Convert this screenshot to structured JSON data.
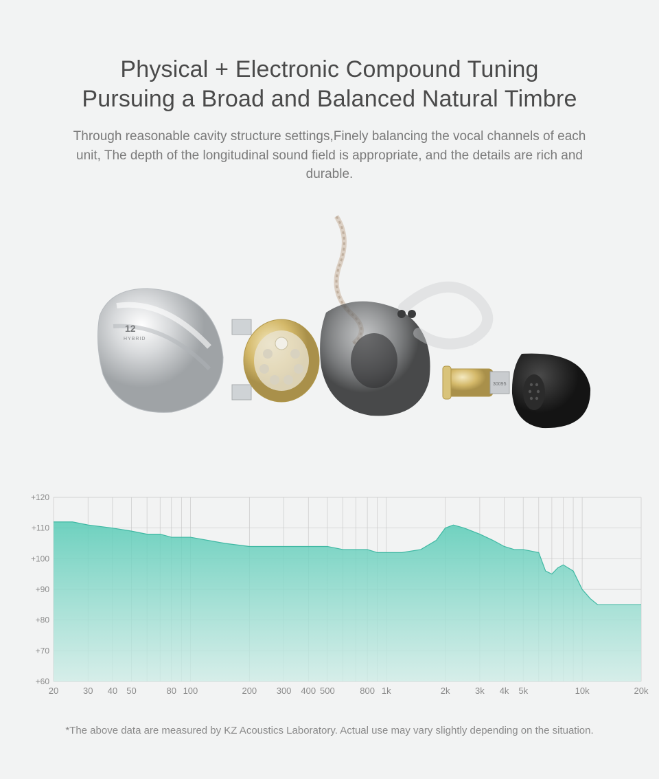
{
  "header": {
    "title_line1": "Physical + Electronic Compound Tuning",
    "title_line2": "Pursuing a Broad and Balanced Natural Timbre",
    "subtitle": "Through reasonable cavity structure settings,Finely balancing the vocal channels of each unit, The depth of the longitudinal sound field is appropriate, and the details are rich and durable."
  },
  "product": {
    "label": "12 HYBRID",
    "note": "exploded-view render of in-ear monitor (photographic, not reproduced)"
  },
  "chart": {
    "type": "area",
    "x_scale": "log",
    "xlim": [
      20,
      20000
    ],
    "ylim": [
      60,
      120
    ],
    "ytick_step": 10,
    "ytick_labels": [
      "+60",
      "+70",
      "+80",
      "+90",
      "+100",
      "+110",
      "+120"
    ],
    "xticks": [
      20,
      30,
      40,
      50,
      80,
      100,
      200,
      300,
      400,
      500,
      800,
      1000,
      2000,
      3000,
      4000,
      5000,
      10000,
      20000
    ],
    "xtick_labels": [
      "20",
      "30",
      "40",
      "50",
      "80",
      "100",
      "200",
      "300",
      "400",
      "500",
      "800",
      "1k",
      "2k",
      "3k",
      "4k",
      "5k",
      "10k",
      "20k"
    ],
    "vgrid_major": [
      20,
      30,
      40,
      50,
      60,
      70,
      80,
      90,
      100,
      200,
      300,
      400,
      500,
      600,
      700,
      800,
      900,
      1000,
      2000,
      3000,
      4000,
      5000,
      6000,
      7000,
      8000,
      9000,
      10000,
      20000
    ],
    "series": {
      "name": "frequency_response_db",
      "fill_top_color": "#57cbb6",
      "fill_bottom_color": "#cdece6",
      "fill_opacity": 0.85,
      "line_color": "#3fb8a3",
      "line_width": 1.2,
      "points": [
        [
          20,
          112
        ],
        [
          25,
          112
        ],
        [
          30,
          111
        ],
        [
          40,
          110
        ],
        [
          50,
          109
        ],
        [
          60,
          108
        ],
        [
          70,
          108
        ],
        [
          80,
          107
        ],
        [
          90,
          107
        ],
        [
          100,
          107
        ],
        [
          150,
          105
        ],
        [
          200,
          104
        ],
        [
          250,
          104
        ],
        [
          300,
          104
        ],
        [
          400,
          104
        ],
        [
          500,
          104
        ],
        [
          600,
          103
        ],
        [
          700,
          103
        ],
        [
          800,
          103
        ],
        [
          900,
          102
        ],
        [
          1000,
          102
        ],
        [
          1200,
          102
        ],
        [
          1500,
          103
        ],
        [
          1800,
          106
        ],
        [
          2000,
          110
        ],
        [
          2200,
          111
        ],
        [
          2500,
          110
        ],
        [
          3000,
          108
        ],
        [
          3500,
          106
        ],
        [
          4000,
          104
        ],
        [
          4500,
          103
        ],
        [
          5000,
          103
        ],
        [
          6000,
          102
        ],
        [
          6500,
          96
        ],
        [
          7000,
          95
        ],
        [
          7500,
          97
        ],
        [
          8000,
          98
        ],
        [
          9000,
          96
        ],
        [
          10000,
          90
        ],
        [
          11000,
          87
        ],
        [
          12000,
          85
        ],
        [
          14000,
          85
        ],
        [
          16000,
          85
        ],
        [
          18000,
          85
        ],
        [
          20000,
          85
        ]
      ]
    },
    "background_color": "#f2f3f3",
    "grid_color": "#c9c9c9",
    "label_fontsize_y": 12,
    "label_fontsize_x": 13,
    "label_color": "#8a8a8a"
  },
  "footnote": "*The above data are measured by KZ Acoustics Laboratory. Actual use may vary slightly depending on the situation."
}
